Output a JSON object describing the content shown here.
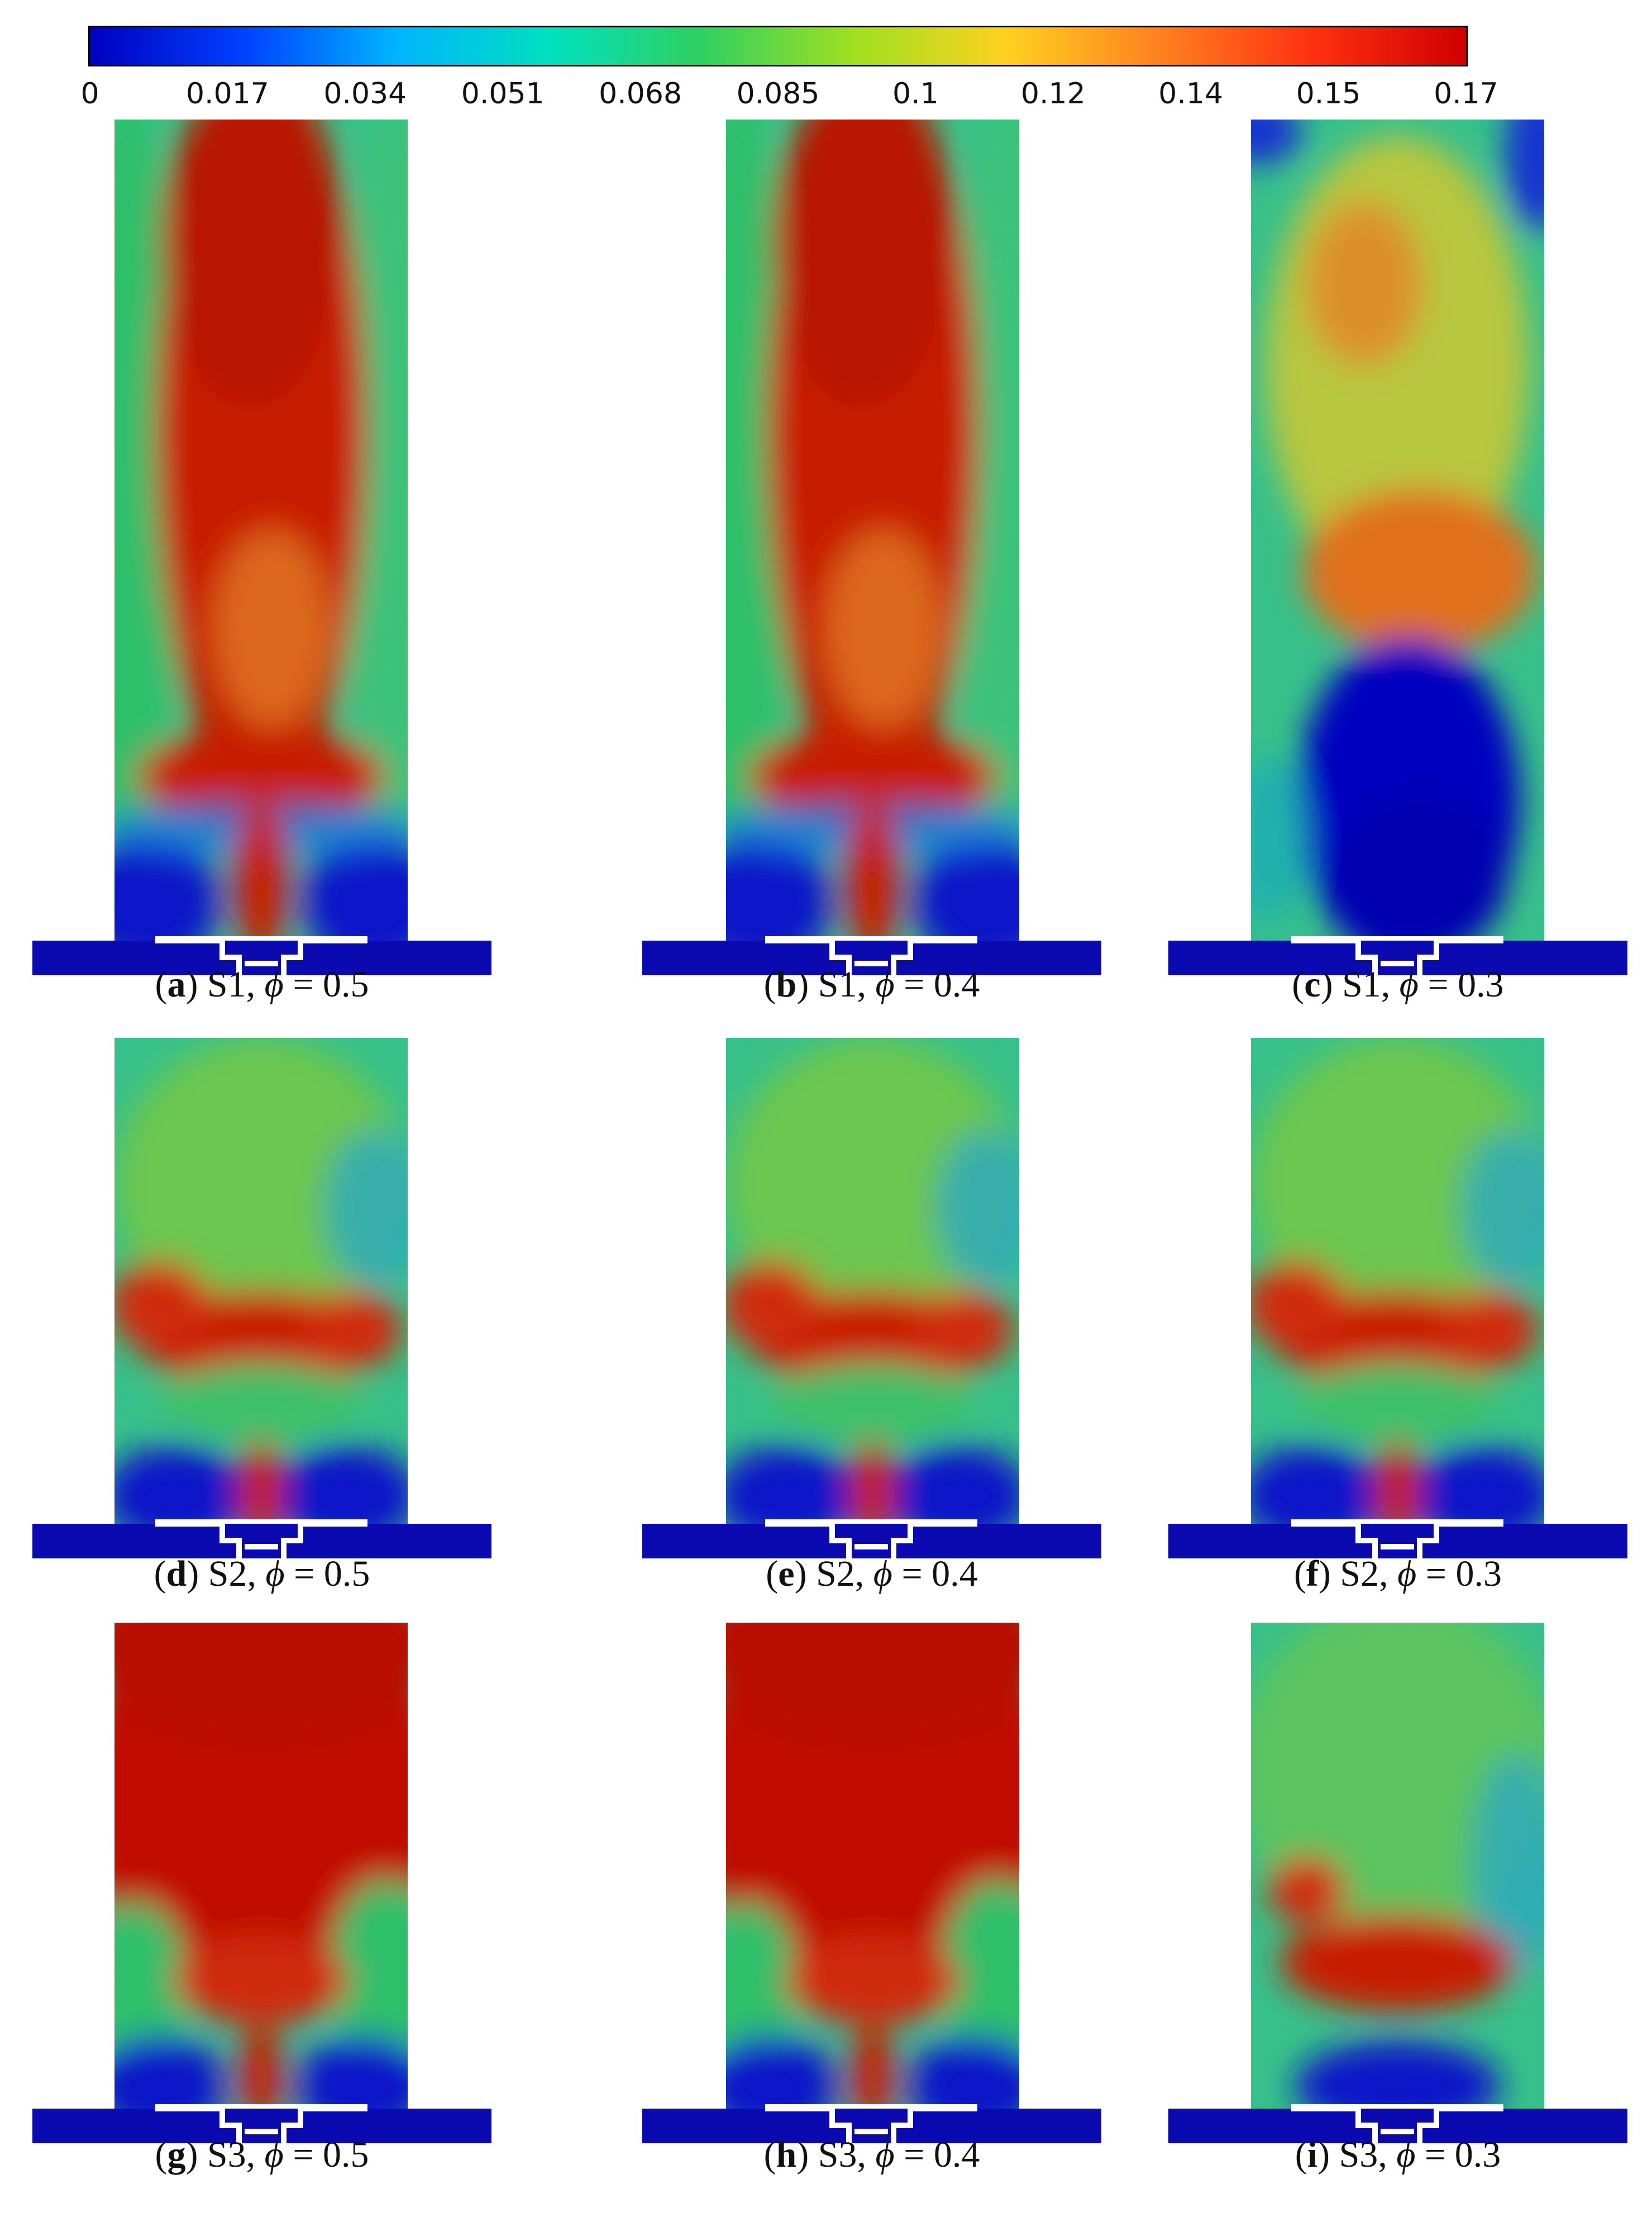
{
  "colorbar": {
    "ticks": [
      "0",
      "0.017",
      "0.034",
      "0.051",
      "0.068",
      "0.085",
      "0.1",
      "0.12",
      "0.14",
      "0.15",
      "0.17"
    ],
    "colormap": [
      "#0000c0",
      "#0040ff",
      "#00b4ff",
      "#00e0c0",
      "#30d060",
      "#a0e020",
      "#ffd020",
      "#ff8020",
      "#ff3010",
      "#d00000"
    ]
  },
  "panels": [
    {
      "id": "a",
      "letter": "a",
      "scheme": "S1",
      "phi_symbol": "ϕ",
      "phi_value": "= 0.5",
      "flame": "tall"
    },
    {
      "id": "b",
      "letter": "b",
      "scheme": "S1",
      "phi_symbol": "ϕ",
      "phi_value": "= 0.4",
      "flame": "tall"
    },
    {
      "id": "c",
      "letter": "c",
      "scheme": "S1",
      "phi_symbol": "ϕ",
      "phi_value": "= 0.3",
      "flame": "weak"
    },
    {
      "id": "d",
      "letter": "d",
      "scheme": "S2",
      "phi_symbol": "ϕ",
      "phi_value": "= 0.5",
      "flame": "mid"
    },
    {
      "id": "e",
      "letter": "e",
      "scheme": "S2",
      "phi_symbol": "ϕ",
      "phi_value": "= 0.4",
      "flame": "mid"
    },
    {
      "id": "f",
      "letter": "f",
      "scheme": "S2",
      "phi_symbol": "ϕ",
      "phi_value": "= 0.3",
      "flame": "mid"
    },
    {
      "id": "g",
      "letter": "g",
      "scheme": "S3",
      "phi_symbol": "ϕ",
      "phi_value": "= 0.5",
      "flame": "full"
    },
    {
      "id": "h",
      "letter": "h",
      "scheme": "S3",
      "phi_symbol": "ϕ",
      "phi_value": "= 0.4",
      "flame": "full"
    },
    {
      "id": "i",
      "letter": "i",
      "scheme": "S3",
      "phi_symbol": "ϕ",
      "phi_value": "= 0.3",
      "flame": "low"
    }
  ]
}
